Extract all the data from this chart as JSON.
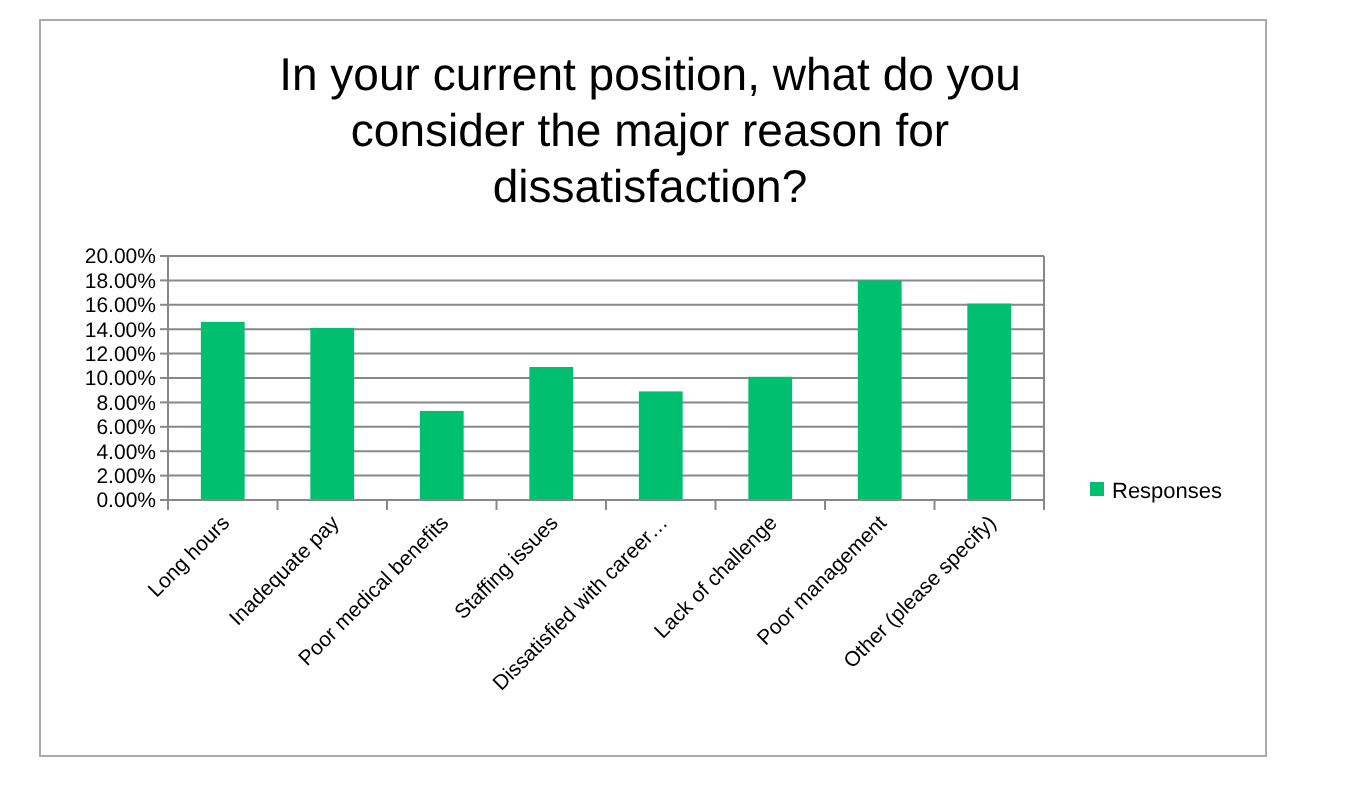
{
  "chart_data": {
    "type": "bar",
    "title": "In your current position, what do you consider the major reason for dissatisfaction?",
    "categories": [
      "Long hours",
      "Inadequate pay",
      "Poor medical benefits",
      "Staffing issues",
      "Dissatisfied with career…",
      "Lack of challenge",
      "Poor management",
      "Other (please specify)"
    ],
    "series": [
      {
        "name": "Responses",
        "color": "#00bf6f",
        "values": [
          14.6,
          14.1,
          7.3,
          10.9,
          8.9,
          10.1,
          18.0,
          16.1
        ]
      }
    ],
    "ylim": [
      0,
      20
    ],
    "yticks": [
      {
        "value": 0,
        "label": "0.00%"
      },
      {
        "value": 2,
        "label": "2.00%"
      },
      {
        "value": 4,
        "label": "4.00%"
      },
      {
        "value": 6,
        "label": "6.00%"
      },
      {
        "value": 8,
        "label": "8.00%"
      },
      {
        "value": 10,
        "label": "10.00%"
      },
      {
        "value": 12,
        "label": "12.00%"
      },
      {
        "value": 14,
        "label": "14.00%"
      },
      {
        "value": 16,
        "label": "16.00%"
      },
      {
        "value": 18,
        "label": "18.00%"
      },
      {
        "value": 20,
        "label": "20.00%"
      }
    ],
    "grid": "y",
    "legend": "right"
  }
}
